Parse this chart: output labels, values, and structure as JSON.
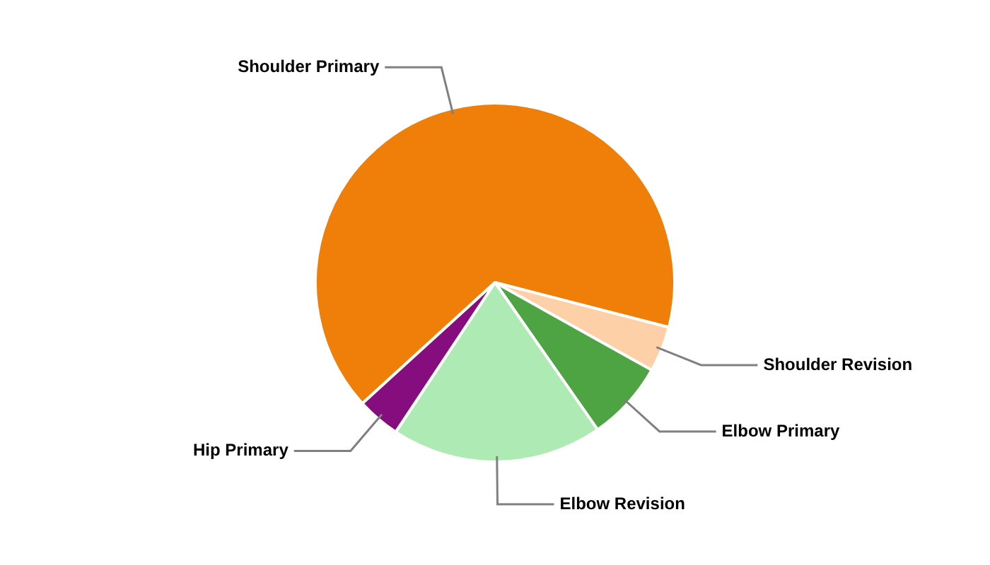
{
  "chart_data": {
    "type": "pie",
    "categories": [
      "Shoulder Primary",
      "Shoulder Revision",
      "Elbow Primary",
      "Elbow Revision",
      "Hip Primary"
    ],
    "values": [
      65.8,
      4.1,
      7.2,
      19.0,
      3.9
    ],
    "colors": [
      "#f07f09",
      "#fdd0a8",
      "#4ea343",
      "#aeeab4",
      "#850d7e"
    ],
    "legend": false
  }
}
